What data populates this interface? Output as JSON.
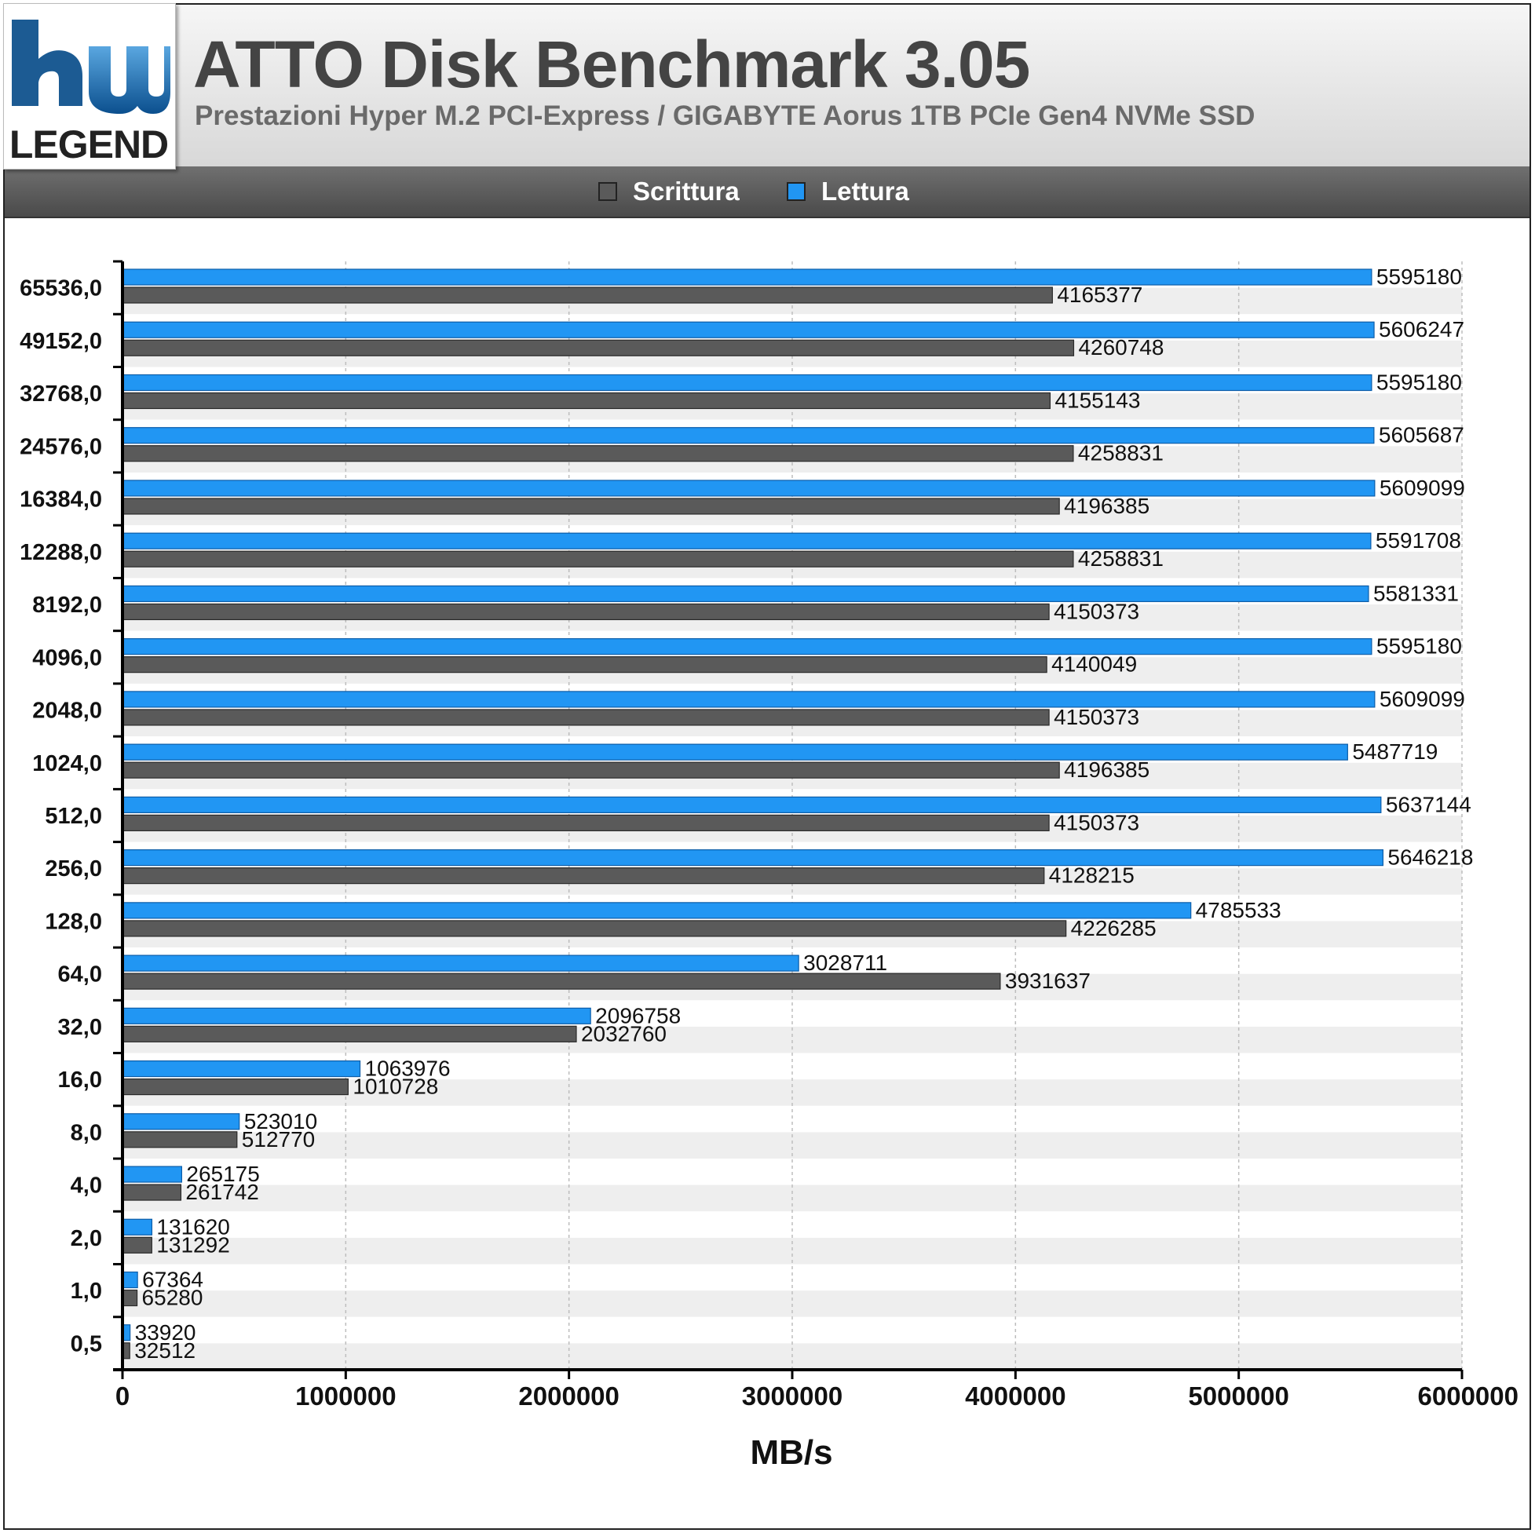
{
  "header": {
    "title": "ATTO Disk Benchmark 3.05",
    "subtitle": "Prestazioni Hyper M.2 PCI-Express / GIGABYTE Aorus 1TB PCIe Gen4 NVMe SSD",
    "logo_text": "hw LEGEND"
  },
  "legend": {
    "items": [
      {
        "label": "Scrittura",
        "color": "#5a5a5a"
      },
      {
        "label": "Lettura",
        "color": "#2196f3"
      }
    ]
  },
  "chart_data": {
    "type": "bar",
    "orientation": "horizontal",
    "title": "ATTO Disk Benchmark 3.05",
    "subtitle": "Prestazioni Hyper M.2 PCI-Express / GIGABYTE Aorus 1TB PCIe Gen4 NVMe SSD",
    "xlabel": "MB/s",
    "ylabel": "",
    "xlim": [
      0,
      6000000
    ],
    "xticks": [
      0,
      1000000,
      2000000,
      3000000,
      4000000,
      5000000,
      6000000
    ],
    "xtick_labels": [
      "0",
      "1000000",
      "2000000",
      "3000000",
      "4000000",
      "5000000",
      "6000000"
    ],
    "grid": true,
    "legend_position": "top-center",
    "categories": [
      "65536,0",
      "49152,0",
      "32768,0",
      "24576,0",
      "16384,0",
      "12288,0",
      "8192,0",
      "4096,0",
      "2048,0",
      "1024,0",
      "512,0",
      "256,0",
      "128,0",
      "64,0",
      "32,0",
      "16,0",
      "8,0",
      "4,0",
      "2,0",
      "1,0",
      "0,5"
    ],
    "series": [
      {
        "name": "Lettura",
        "color": "#2196f3",
        "values": [
          5595180,
          5606247,
          5595180,
          5605687,
          5609099,
          5591708,
          5581331,
          5595180,
          5609099,
          5487719,
          5637144,
          5646218,
          4785533,
          3028711,
          2096758,
          1063976,
          523010,
          265175,
          131620,
          67364,
          33920
        ]
      },
      {
        "name": "Scrittura",
        "color": "#5a5a5a",
        "values": [
          4165377,
          4260748,
          4155143,
          4258831,
          4196385,
          4258831,
          4150373,
          4140049,
          4150373,
          4196385,
          4150373,
          4128215,
          4226285,
          3931637,
          2032760,
          1010728,
          512770,
          261742,
          131292,
          65280,
          32512
        ]
      }
    ]
  }
}
